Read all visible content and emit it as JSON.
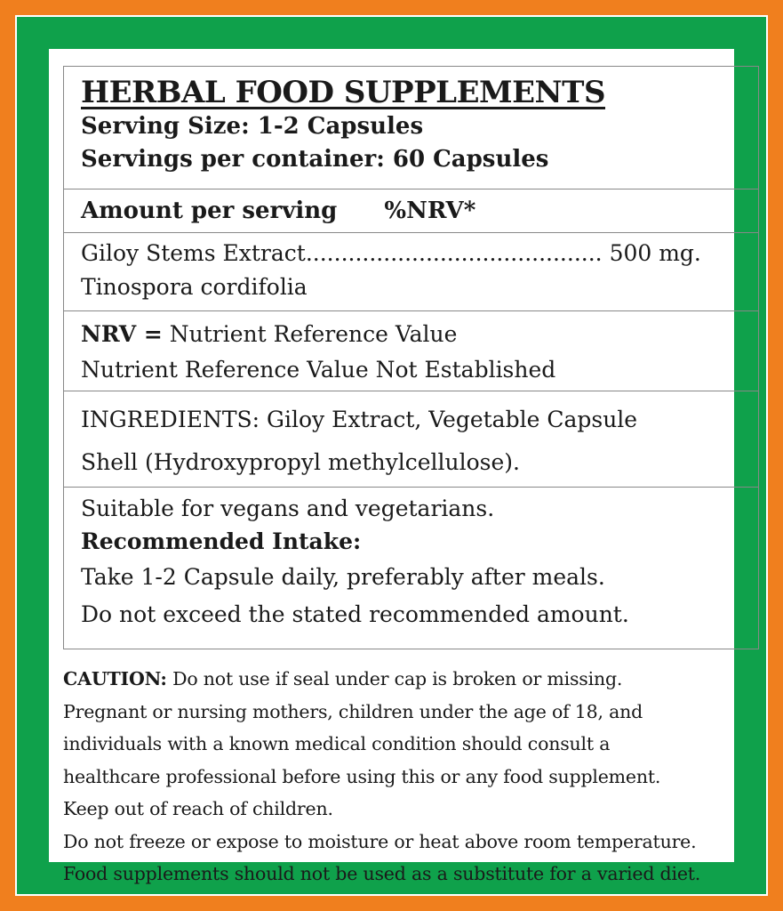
{
  "colors": {
    "outer": "#f07f1e",
    "inner": "#0fa14b"
  },
  "title": "HERBAL FOOD SUPPLEMENTS",
  "serving_size": "Serving Size: 1-2 Capsules",
  "servings_per_container": "Servings per container: 60 Capsules",
  "amount_header": "Amount per serving",
  "nrv_header": "%NRV*",
  "ingredient": {
    "name": "Giloy Stems Extract",
    "dots": "..........................................",
    "amount": "500 mg.",
    "latin": "Tinospora cordifolia"
  },
  "nrv": {
    "label": "NRV =",
    "text": "Nutrient Reference Value",
    "note": "Nutrient Reference Value Not Established"
  },
  "ingredients_line1": "INGREDIENTS: Giloy Extract, Vegetable Capsule",
  "ingredients_line2": "Shell (Hydroxypropyl methylcellulose).",
  "suitable": "Suitable for vegans and vegetarians.",
  "intake_heading": "Recommended Intake:",
  "intake_line1": "Take 1-2 Capsule daily, preferably after meals.",
  "intake_line2": "Do not exceed the stated recommended amount.",
  "caution": {
    "label": "CAUTION:",
    "lines": [
      "Do not use if seal under cap is broken or missing.",
      "Pregnant or nursing mothers, children under the age of 18, and",
      "individuals with a known medical condition should consult a",
      "healthcare professional before using this or any food supplement.",
      "Keep out of reach of children.",
      "Do not freeze or expose to moisture or heat above room temperature.",
      "Food supplements should not be used as a substitute for a varied diet."
    ]
  }
}
